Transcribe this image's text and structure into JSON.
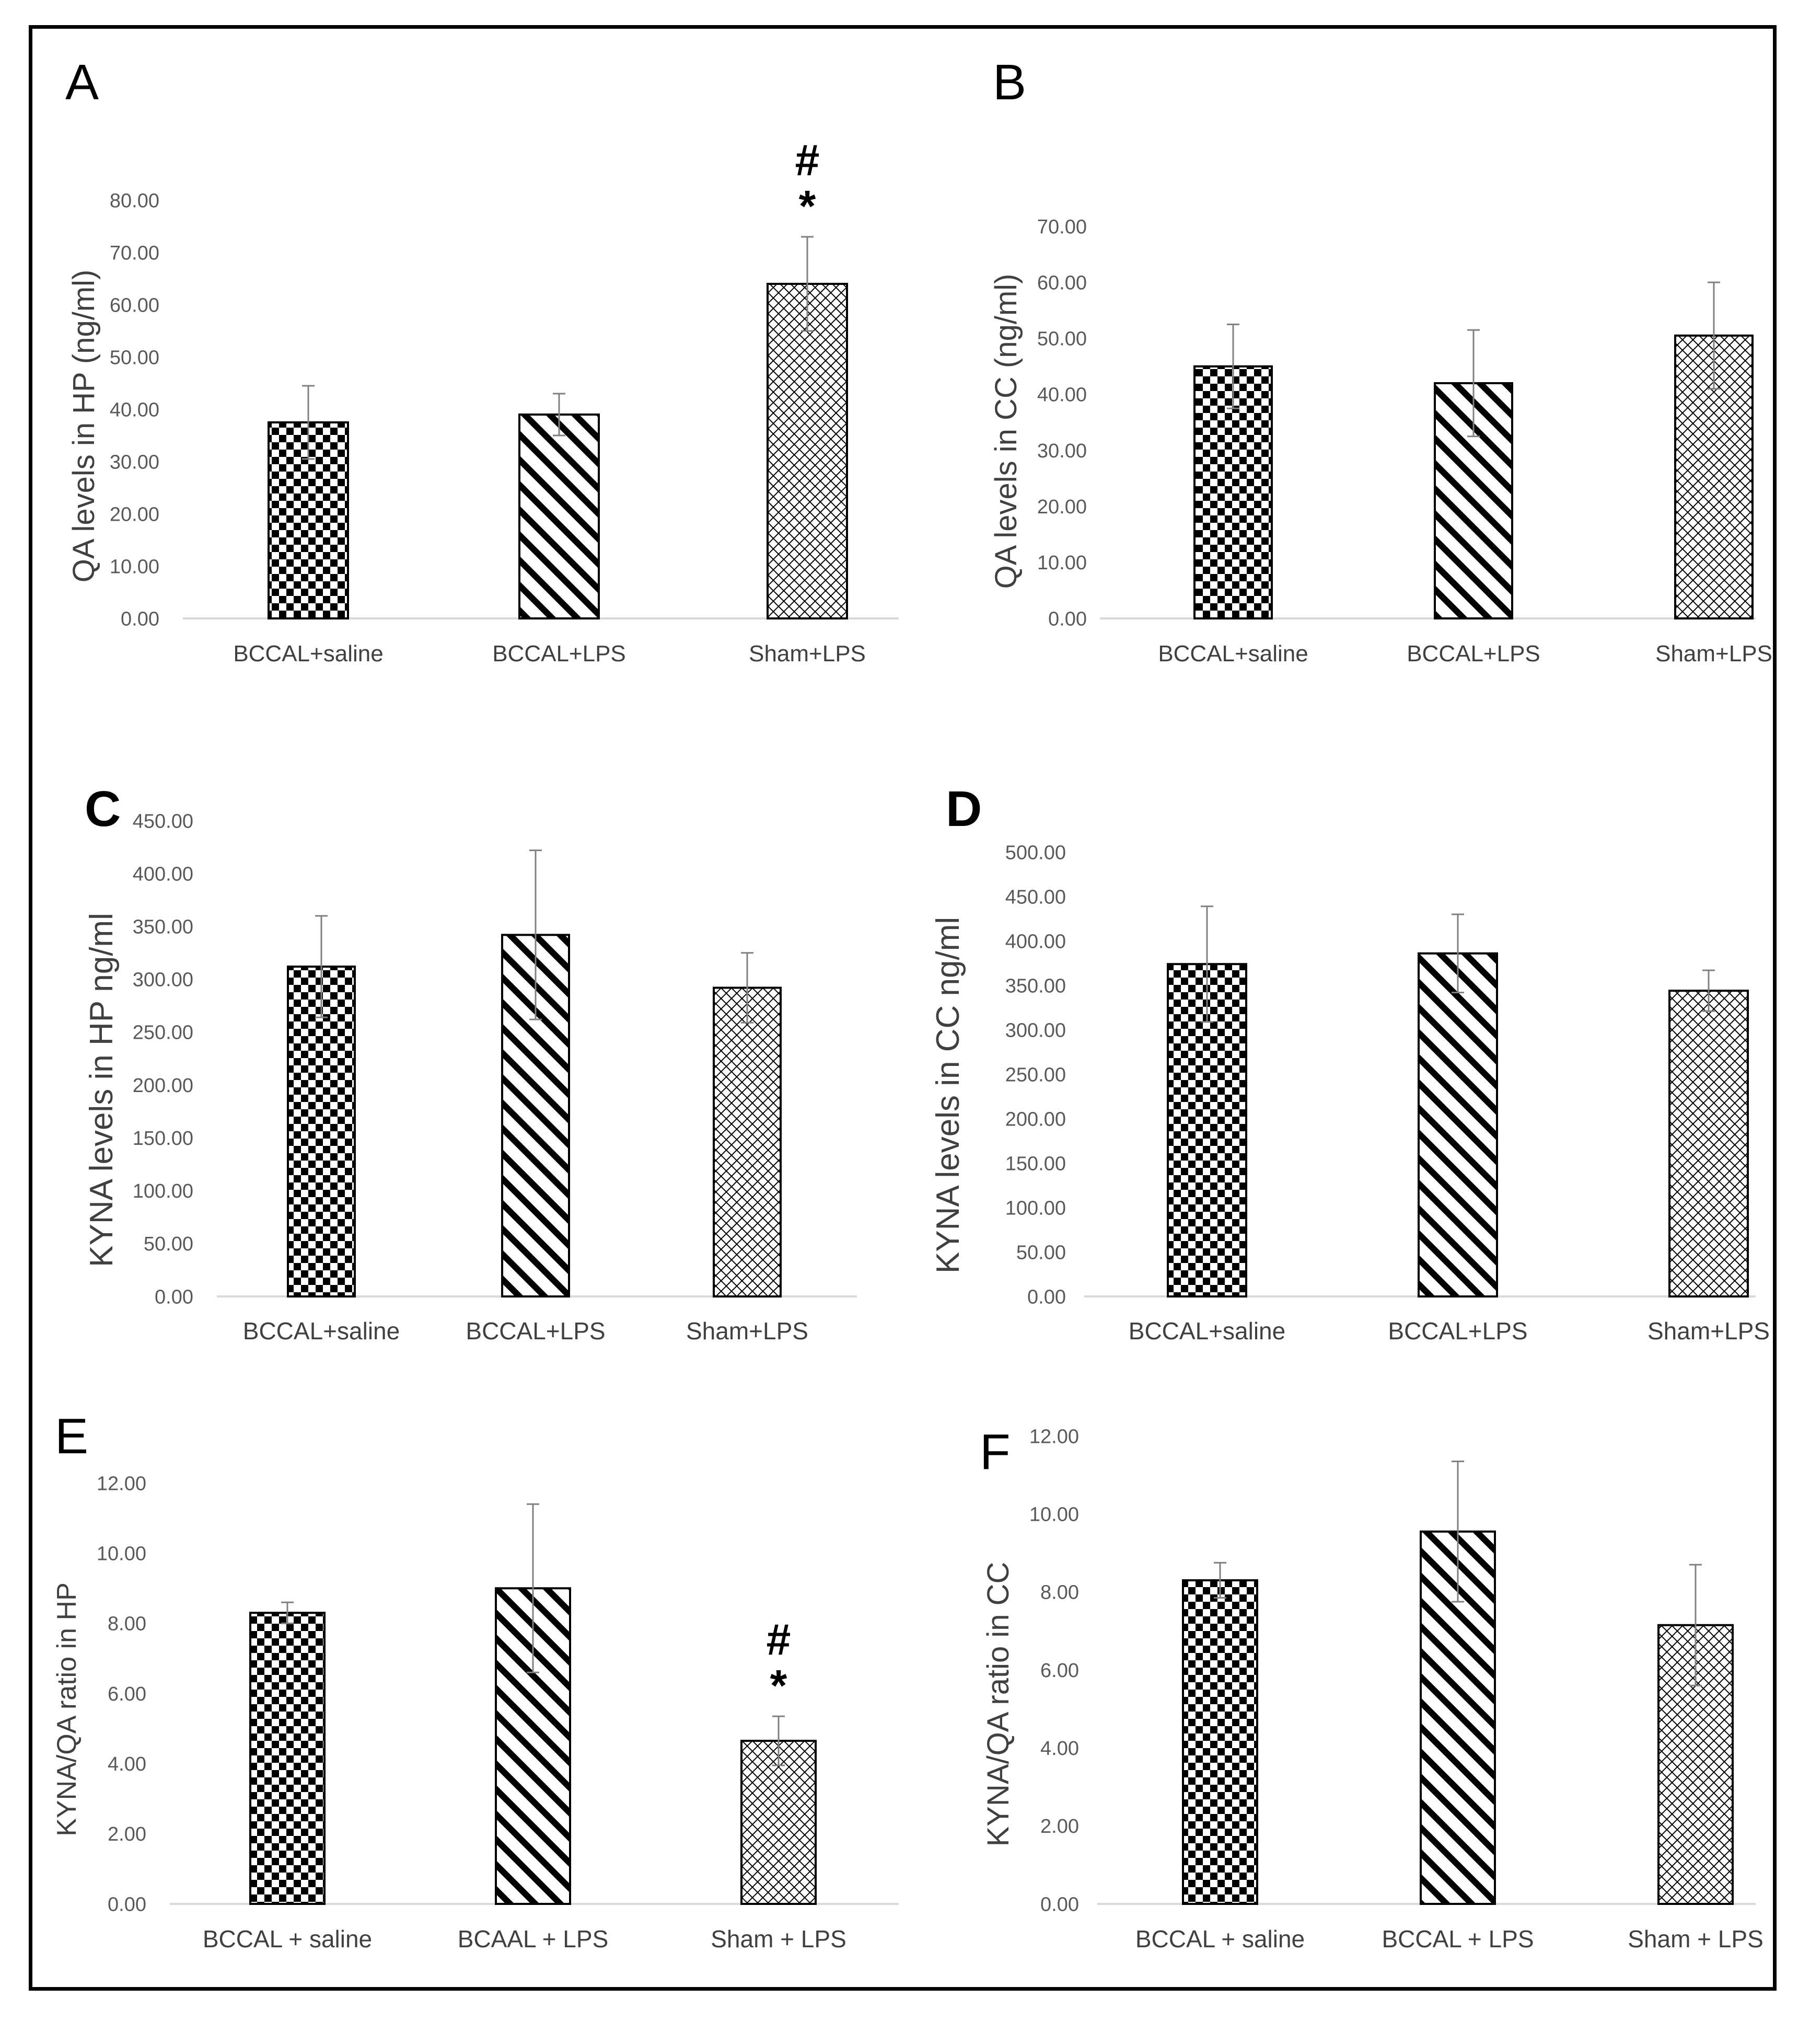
{
  "chart_data": [
    {
      "panel": "A",
      "type": "bar",
      "ylabel": "QA  levels in HP (ng/ml)",
      "categories": [
        "BCCAL+saline",
        "BCCAL+LPS",
        "Sham+LPS"
      ],
      "values": [
        37.5,
        39.0,
        64.0
      ],
      "errors": [
        7.0,
        4.0,
        9.0
      ],
      "ylim": [
        0,
        80
      ],
      "ystep": 10,
      "yticks_format": "0.00",
      "annotations": [
        {
          "category_index": 2,
          "symbols": [
            "#",
            "*"
          ]
        }
      ]
    },
    {
      "panel": "B",
      "type": "bar",
      "ylabel": "QA levels in CC (ng/ml)",
      "categories": [
        "BCCAL+saline",
        "BCCAL+LPS",
        "Sham+LPS"
      ],
      "values": [
        45.0,
        42.0,
        50.5
      ],
      "errors": [
        7.5,
        9.5,
        9.5
      ],
      "ylim": [
        0,
        70
      ],
      "ystep": 10,
      "yticks_format": "0.00",
      "annotations": []
    },
    {
      "panel": "C",
      "type": "bar",
      "ylabel": "KYNA levels in HP ng/ml",
      "categories": [
        "BCCAL+saline",
        "BCCAL+LPS",
        "Sham+LPS"
      ],
      "values": [
        312,
        342,
        292
      ],
      "errors": [
        48,
        80,
        33
      ],
      "ylim": [
        0,
        450
      ],
      "ystep": 50,
      "yticks_format": "0.00",
      "annotations": []
    },
    {
      "panel": "D",
      "type": "bar",
      "ylabel": "KYNA levels in CC ng/ml",
      "categories": [
        "BCCAL+saline",
        "BCCAL+LPS",
        "Sham+LPS"
      ],
      "values": [
        374,
        386,
        344
      ],
      "errors": [
        65,
        44,
        23
      ],
      "ylim": [
        0,
        500
      ],
      "ystep": 50,
      "yticks_format": "0.00",
      "annotations": []
    },
    {
      "panel": "E",
      "type": "bar",
      "ylabel": "KYNA/QA ratio in HP",
      "categories": [
        "BCCAL + saline",
        "BCAAL + LPS",
        "Sham + LPS"
      ],
      "values": [
        8.3,
        9.0,
        4.65
      ],
      "errors": [
        0.3,
        2.4,
        0.7
      ],
      "ylim": [
        0,
        12
      ],
      "ystep": 2,
      "yticks_format": "0.00",
      "annotations": [
        {
          "category_index": 2,
          "symbols": [
            "#",
            "*"
          ]
        }
      ]
    },
    {
      "panel": "F",
      "type": "bar",
      "ylabel": "KYNA/QA ratio in CC",
      "categories": [
        "BCCAL + saline",
        "BCCAL + LPS",
        "Sham + LPS"
      ],
      "values": [
        8.3,
        9.55,
        7.15
      ],
      "errors": [
        0.45,
        1.8,
        1.55
      ],
      "ylim": [
        0,
        12
      ],
      "ystep": 2,
      "yticks_format": "0.00",
      "annotations": []
    }
  ],
  "fill_patterns": [
    "checkerboard",
    "diagonal-stripes",
    "crosshatch"
  ],
  "colors": {
    "bar_stroke": "#000000",
    "axis": "#d9d9d9",
    "error_bar": "#808080",
    "tick_text": "#595959",
    "label_text": "#404040"
  }
}
